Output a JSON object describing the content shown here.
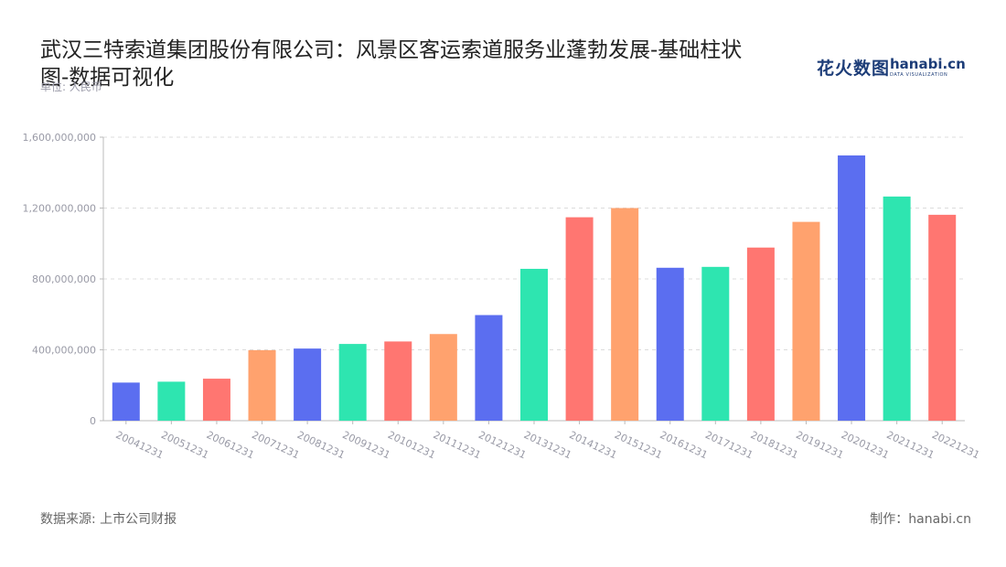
{
  "title": "武汉三特索道集团股份有限公司：风景区客运索道服务业蓬勃发展-基础柱状图-数据可视化",
  "unit_label": "单位: 人民币",
  "logo": {
    "cn": "花火数图",
    "en": "hanabi.cn",
    "sub": "DATA VISUALIZATION"
  },
  "footer": {
    "source": "数据来源: 上市公司财报",
    "credit": "制作：hanabi.cn"
  },
  "palette": [
    "#5b6ef0",
    "#2ee5b0",
    "#ff7671",
    "#ffa26e"
  ],
  "chart_data": {
    "type": "bar",
    "categories": [
      "20041231",
      "20051231",
      "20061231",
      "20071231",
      "20081231",
      "20091231",
      "20101231",
      "20111231",
      "20121231",
      "20131231",
      "20141231",
      "20151231",
      "20161231",
      "20171231",
      "20181231",
      "20191231",
      "20201231",
      "20211231",
      "20221231"
    ],
    "values": [
      215000000,
      220000000,
      237000000,
      398000000,
      407000000,
      433000000,
      447000000,
      489000000,
      596000000,
      857000000,
      1148000000,
      1200000000,
      863000000,
      868000000,
      977000000,
      1122000000,
      1497000000,
      1265000000,
      1162000000
    ],
    "ylim": [
      0,
      1600000000
    ],
    "yticks": [
      0,
      400000000,
      800000000,
      1200000000,
      1600000000
    ],
    "ytick_labels": [
      "0",
      "400,000,000",
      "800,000,000",
      "1,200,000,000",
      "1,600,000,000"
    ],
    "bar_colors": [
      "#5b6ef0",
      "#2ee5b0",
      "#ff7671",
      "#ffa26e",
      "#5b6ef0",
      "#2ee5b0",
      "#ff7671",
      "#ffa26e",
      "#5b6ef0",
      "#2ee5b0",
      "#ff7671",
      "#ffa26e",
      "#5b6ef0",
      "#2ee5b0",
      "#ff7671",
      "#ffa26e",
      "#5b6ef0",
      "#2ee5b0",
      "#ff7671"
    ],
    "grid": true,
    "legend": "none"
  }
}
